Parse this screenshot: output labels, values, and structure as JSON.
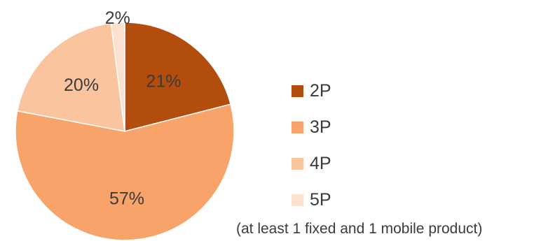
{
  "chart_data": {
    "type": "pie",
    "categories": [
      "2P",
      "3P",
      "4P",
      "5P"
    ],
    "values": [
      21,
      57,
      20,
      2
    ],
    "value_labels": [
      "21%",
      "57%",
      "20%",
      "2%"
    ],
    "colors": [
      "#b34d0d",
      "#f8a36a",
      "#f9c49e",
      "#fbe1ce"
    ],
    "legend": {
      "placement": "right",
      "entries": [
        "2P",
        "3P",
        "4P",
        "5P"
      ]
    },
    "note": "(at least 1 fixed and 1 mobile product)",
    "start": "12 o'clock",
    "direction": "clockwise"
  }
}
